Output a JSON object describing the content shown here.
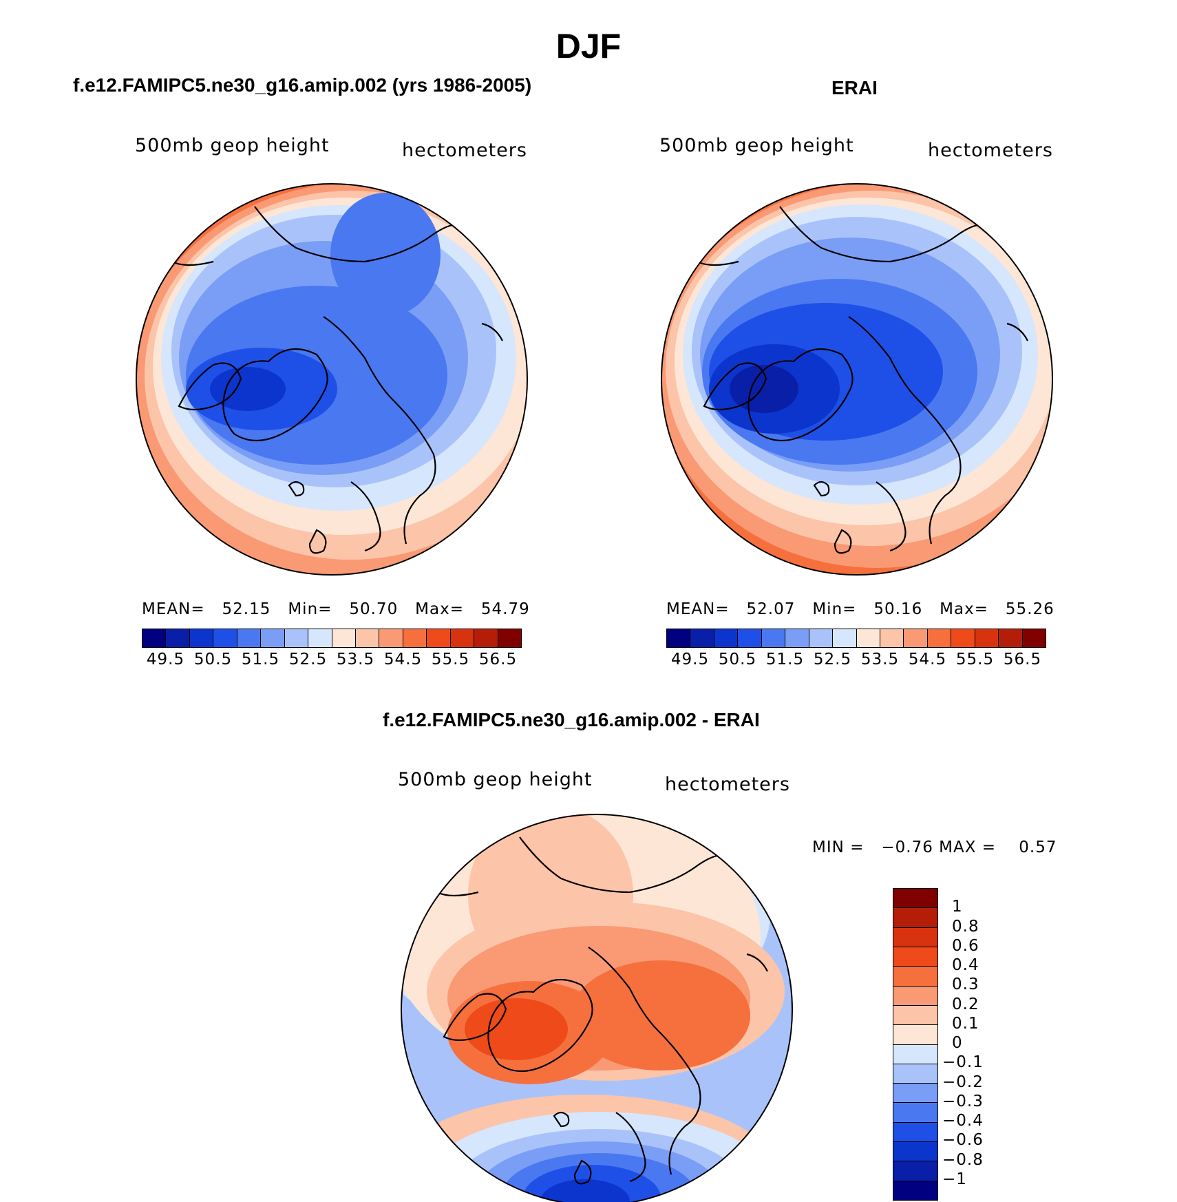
{
  "figure": {
    "title": "DJF",
    "panel_model": {
      "title": "f.e12.FAMIPC5.ne30_g16.amip.002 (yrs 1986-2005)",
      "left_label": "500mb geop height",
      "right_label": "hectometers",
      "mean_label": "MEAN=",
      "mean": "52.15",
      "min_label": "Min=",
      "min": "50.70",
      "max_label": "Max=",
      "max": "54.79"
    },
    "panel_obs": {
      "title": "ERAI",
      "left_label": "500mb geop height",
      "right_label": "hectometers",
      "mean_label": "MEAN=",
      "mean": "52.07",
      "min_label": "Min=",
      "min": "50.16",
      "max_label": "Max=",
      "max": "55.26"
    },
    "panel_diff": {
      "title": "f.e12.FAMIPC5.ne30_g16.amip.002 - ERAI",
      "left_label": "500mb geop height",
      "right_label": "hectometers",
      "stats_text": "MIN =   −0.76 MAX =    0.57"
    },
    "colorbar_top": {
      "colors": [
        "#000080",
        "#0a1fa8",
        "#0b35cc",
        "#1e50e8",
        "#4a78f0",
        "#7a9ef5",
        "#a9c3fa",
        "#d6e6fd",
        "#fde6d6",
        "#fcc4a8",
        "#f99a74",
        "#f6703e",
        "#ee4a1a",
        "#d8330f",
        "#b41d08",
        "#800000"
      ],
      "labels": [
        "49.5",
        "50.5",
        "51.5",
        "52.5",
        "53.5",
        "54.5",
        "55.5",
        "56.5"
      ]
    },
    "colorbar_diff": {
      "colors": [
        "#800000",
        "#b41d08",
        "#d8330f",
        "#ee4a1a",
        "#f6703e",
        "#f99a74",
        "#fcc4a8",
        "#fde6d6",
        "#d6e6fd",
        "#a9c3fa",
        "#7a9ef5",
        "#4a78f0",
        "#1e50e8",
        "#0b35cc",
        "#0a1fa8",
        "#000080"
      ],
      "labels": [
        "1",
        "0.8",
        "0.6",
        "0.4",
        "0.3",
        "0.2",
        "0.1",
        "0",
        "−0.1",
        "−0.2",
        "−0.3",
        "−0.4",
        "−0.6",
        "−0.8",
        "−1"
      ]
    }
  },
  "chart_data": {
    "type": "heatmap",
    "projection": "north polar stereographic",
    "variable": "500mb geop height",
    "units": "hectometers",
    "season": "DJF",
    "panels": [
      {
        "name": "f.e12.FAMIPC5.ne30_g16.amip.002 (yrs 1986-2005)",
        "mean": 52.15,
        "min": 50.7,
        "max": 54.79,
        "levels": [
          49.5,
          50,
          50.5,
          51,
          51.5,
          52,
          52.5,
          53,
          53.5,
          54,
          54.5,
          55,
          55.5,
          56,
          56.5
        ]
      },
      {
        "name": "ERAI",
        "mean": 52.07,
        "min": 50.16,
        "max": 55.26,
        "levels": [
          49.5,
          50,
          50.5,
          51,
          51.5,
          52,
          52.5,
          53,
          53.5,
          54,
          54.5,
          55,
          55.5,
          56,
          56.5
        ]
      },
      {
        "name": "f.e12.FAMIPC5.ne30_g16.amip.002 - ERAI",
        "min": -0.76,
        "max": 0.57,
        "levels": [
          -1,
          -0.8,
          -0.6,
          -0.4,
          -0.3,
          -0.2,
          -0.1,
          0,
          0.1,
          0.2,
          0.3,
          0.4,
          0.6,
          0.8,
          1
        ]
      }
    ]
  }
}
